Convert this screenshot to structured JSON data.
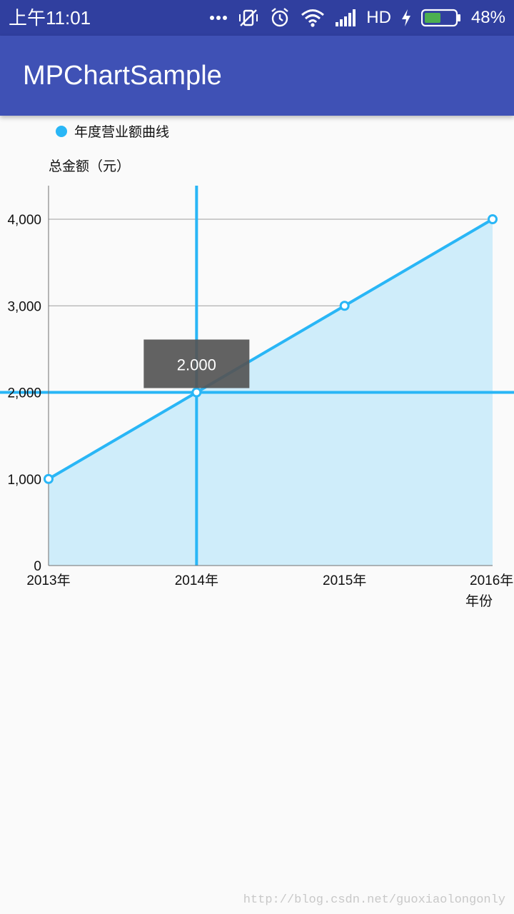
{
  "status_bar": {
    "time": "上午11:01",
    "network": "HD",
    "battery_percent": "48%",
    "icons": [
      "more-dots-icon",
      "vibrate-off-icon",
      "alarm-icon",
      "wifi-icon",
      "signal-icon",
      "charging-icon",
      "battery-icon"
    ]
  },
  "app_bar": {
    "title": "MPChartSample"
  },
  "colors": {
    "status_bar": "#303f9f",
    "app_bar": "#3f51b5",
    "line": "#29b6f6",
    "fill": "#cfedfa",
    "highlight": "#29b6f6",
    "marker_bg": "#555555"
  },
  "chart_data": {
    "type": "line",
    "legend": "年度营业额曲线",
    "legend_position": "top-left",
    "ylabel": "总金额（元）",
    "xlabel": "年份",
    "categories": [
      "2013年",
      "2014年",
      "2015年",
      "2016年"
    ],
    "series": [
      {
        "name": "年度营业额曲线",
        "values": [
          1000,
          2000,
          3000,
          4000
        ]
      }
    ],
    "ylim": [
      0,
      4000
    ],
    "yticks": [
      "0",
      "1,000",
      "2,000",
      "3,000",
      "4,000"
    ],
    "filled": true,
    "grid": "horizontal",
    "highlight": {
      "index": 1,
      "label": "2.000"
    }
  },
  "watermark": "http://blog.csdn.net/guoxiaolongonly"
}
